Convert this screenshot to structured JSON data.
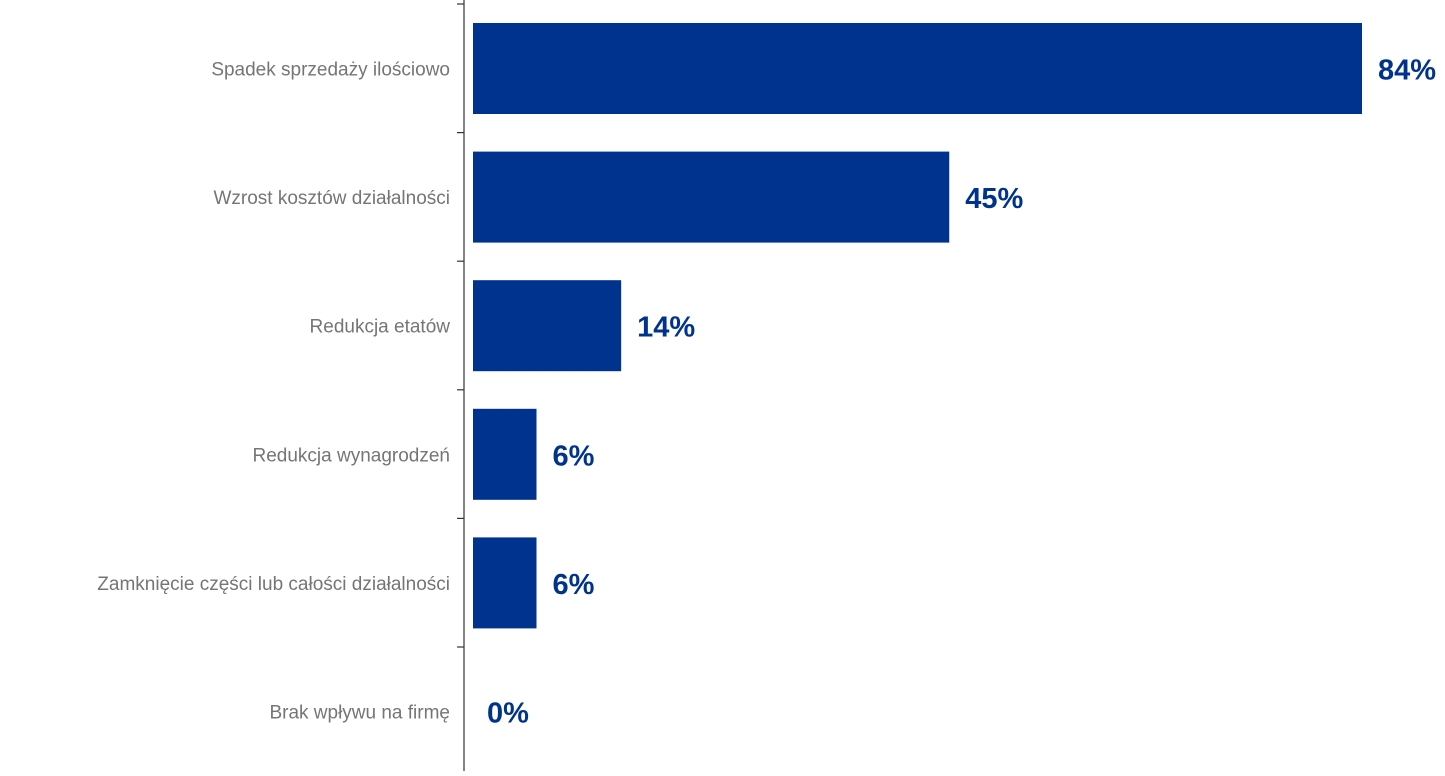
{
  "chart_data": {
    "type": "bar",
    "orientation": "horizontal",
    "categories": [
      "Spadek sprzedaży ilościowo",
      "Wzrost kosztów działalności",
      "Redukcja etatów",
      "Redukcja wynagrodzeń",
      "Zamknięcie części lub całości działalności",
      "Brak wpływu na firmę"
    ],
    "values": [
      84,
      45,
      14,
      6,
      6,
      0
    ],
    "value_labels": [
      "84%",
      "45%",
      "14%",
      "6%",
      "6%",
      "0%"
    ],
    "xlim": [
      0,
      84
    ],
    "colors": {
      "bar": "#00338d",
      "value_label": "#00338d",
      "category_label": "#757575",
      "axis": "#333333"
    },
    "title": "",
    "xlabel": "",
    "ylabel": "",
    "grid": false,
    "legend": "none"
  }
}
